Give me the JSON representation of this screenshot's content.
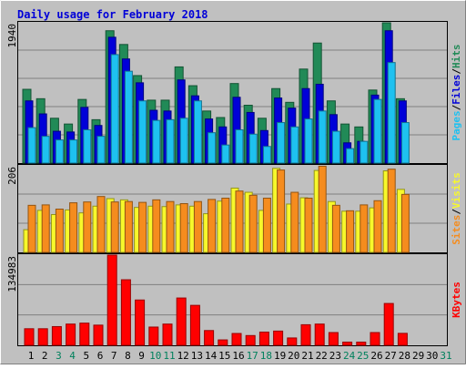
{
  "chart_data": [
    {
      "type": "bar",
      "title": "Daily usage for February 2018",
      "ylabel_parts": [
        "Pages",
        "Files",
        "Hits"
      ],
      "ymax_label": "1940",
      "categories": [
        "1",
        "2",
        "3",
        "4",
        "5",
        "6",
        "7",
        "8",
        "9",
        "10",
        "11",
        "12",
        "13",
        "14",
        "15",
        "16",
        "17",
        "18",
        "19",
        "20",
        "21",
        "22",
        "23",
        "24",
        "25",
        "26",
        "27",
        "28",
        "29",
        "30",
        "31"
      ],
      "weekend_days": [
        "3",
        "4",
        "10",
        "11",
        "17",
        "18",
        "24",
        "25",
        "31"
      ],
      "ylim": [
        0,
        1940
      ],
      "series": [
        {
          "name": "Hits",
          "color": "#218a57",
          "values": [
            1020,
            890,
            620,
            540,
            880,
            600,
            1830,
            1640,
            1210,
            870,
            870,
            1330,
            1070,
            720,
            630,
            1100,
            800,
            620,
            1030,
            840,
            1300,
            1660,
            860,
            540,
            500,
            1010,
            1940,
            890,
            null,
            null,
            null
          ]
        },
        {
          "name": "Files",
          "color": "#0000d8",
          "values": [
            860,
            680,
            440,
            430,
            770,
            520,
            1740,
            1440,
            1110,
            730,
            720,
            1150,
            930,
            610,
            500,
            910,
            700,
            450,
            900,
            760,
            1030,
            1090,
            670,
            280,
            300,
            940,
            1830,
            860,
            null,
            null,
            null
          ]
        },
        {
          "name": "Pages",
          "color": "#1ec1f0",
          "values": [
            490,
            370,
            320,
            320,
            460,
            370,
            1500,
            1270,
            860,
            590,
            600,
            620,
            860,
            420,
            250,
            460,
            400,
            230,
            560,
            500,
            610,
            720,
            440,
            200,
            300,
            880,
            1390,
            560,
            null,
            null,
            null
          ]
        }
      ]
    },
    {
      "type": "bar",
      "ylabel_parts": [
        "Sites",
        "Visits"
      ],
      "ymax_label": "206",
      "ylim": [
        0,
        206
      ],
      "series": [
        {
          "name": "Visits",
          "color": "#f7f82b",
          "values": [
            54,
            100,
            90,
            101,
            94,
            110,
            128,
            125,
            107,
            110,
            109,
            113,
            110,
            92,
            122,
            153,
            143,
            100,
            200,
            115,
            130,
            195,
            121,
            98,
            98,
            106,
            194,
            150,
            null,
            null,
            null
          ]
        },
        {
          "name": "Sites",
          "color": "#f58c1e",
          "values": [
            112,
            113,
            103,
            118,
            120,
            133,
            120,
            121,
            119,
            125,
            121,
            116,
            121,
            126,
            129,
            146,
            136,
            129,
            196,
            143,
            129,
            205,
            112,
            99,
            113,
            123,
            198,
            138,
            null,
            null,
            null
          ]
        }
      ]
    },
    {
      "type": "bar",
      "ylabel_parts": [
        "KBytes"
      ],
      "ymax_label": "134983",
      "ylim": [
        0,
        134983
      ],
      "series": [
        {
          "name": "KBytes",
          "color": "#ff0000",
          "values": [
            24800,
            24800,
            28000,
            31800,
            33200,
            30200,
            134983,
            98100,
            67800,
            27300,
            31800,
            70800,
            59800,
            22100,
            8100,
            17700,
            14600,
            19800,
            21300,
            11000,
            30800,
            31800,
            19100,
            4800,
            4800,
            19100,
            62600,
            17900,
            null,
            null,
            null
          ]
        }
      ]
    }
  ]
}
